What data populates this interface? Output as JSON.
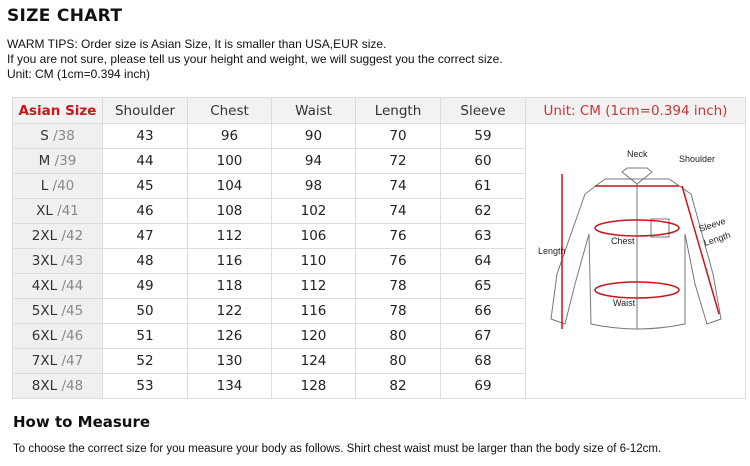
{
  "title": "SIZE CHART",
  "tips": [
    "WARM TIPS: Order size is Asian Size, It is smaller than USA,EUR size.",
    "If you are not sure, please tell us your height and weight, we will suggest you the correct size.",
    "Unit: CM (1cm=0.394 inch)"
  ],
  "table": {
    "headers": [
      "Asian Size",
      "Shoulder",
      "Chest",
      "Waist",
      "Length",
      "Sleeve",
      "Unit: CM (1cm=0.394 inch)"
    ],
    "rows": [
      [
        "S",
        "/38",
        "43",
        "96",
        "90",
        "70",
        "59"
      ],
      [
        "M",
        "/39",
        "44",
        "100",
        "94",
        "72",
        "60"
      ],
      [
        "L",
        "/40",
        "45",
        "104",
        "98",
        "74",
        "61"
      ],
      [
        "XL",
        "/41",
        "46",
        "108",
        "102",
        "74",
        "62"
      ],
      [
        "2XL",
        "/42",
        "47",
        "112",
        "106",
        "76",
        "63"
      ],
      [
        "3XL",
        "/43",
        "48",
        "116",
        "110",
        "76",
        "64"
      ],
      [
        "4XL",
        "/44",
        "49",
        "118",
        "112",
        "78",
        "65"
      ],
      [
        "5XL",
        "/45",
        "50",
        "122",
        "116",
        "78",
        "66"
      ],
      [
        "6XL",
        "/46",
        "51",
        "126",
        "120",
        "80",
        "67"
      ],
      [
        "7XL",
        "/47",
        "52",
        "130",
        "124",
        "80",
        "68"
      ],
      [
        "8XL",
        "/48",
        "53",
        "134",
        "128",
        "82",
        "69"
      ]
    ]
  },
  "diagram": {
    "neck": "Neck",
    "shoulder": "Shoulder",
    "chest": "Chest",
    "waist": "Waist",
    "length": "Length",
    "sleeve": "Sleeve",
    "sleeve2": "Length",
    "accent": "#c8161d"
  },
  "howto": {
    "title": "How to Measure",
    "desc": "To choose the correct size for you measure your body as follows. Shirt chest waist must be larger than the body size of 6-12cm."
  }
}
